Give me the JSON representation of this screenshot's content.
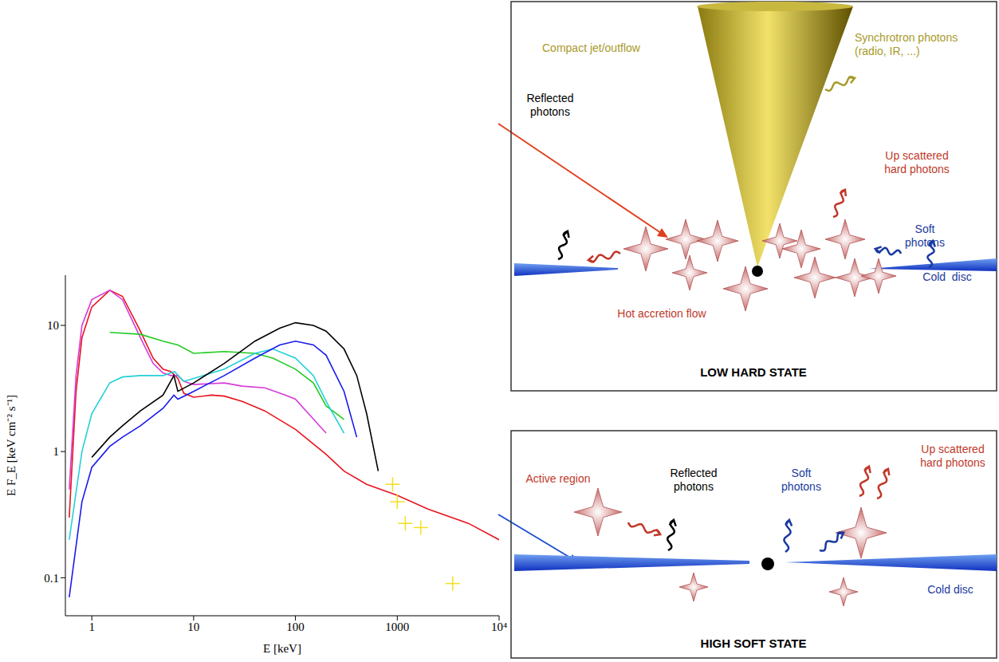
{
  "chart_data": {
    "type": "line",
    "x_label": "E [keV]",
    "y_label": "E F_E [keV cm⁻² s⁻¹]",
    "log": true,
    "xlim": [
      0.55,
      10000
    ],
    "ylim": [
      0.05,
      25
    ],
    "xticks": [
      1,
      10,
      100,
      1000,
      {
        "value": 10000,
        "label": "10⁴"
      }
    ],
    "yticks": [
      0.1,
      1,
      10
    ],
    "series": [
      {
        "color": "#e8141e",
        "x": [
          0.6,
          0.7,
          0.8,
          1,
          1.5,
          2,
          3,
          4,
          5,
          6,
          7,
          8,
          10,
          15,
          20,
          30,
          50,
          100,
          200,
          300,
          500,
          1000,
          2000,
          5000,
          10000
        ],
        "values": [
          0.3,
          3,
          8,
          14,
          19,
          17,
          9,
          5.5,
          4.5,
          4.3,
          3.8,
          2.9,
          2.7,
          2.8,
          2.75,
          2.5,
          2.1,
          1.5,
          0.95,
          0.7,
          0.55,
          0.45,
          0.35,
          0.27,
          0.2
        ]
      },
      {
        "color": "#d63bd6",
        "x": [
          0.6,
          0.7,
          0.8,
          1,
          1.5,
          2,
          3,
          4,
          5,
          6,
          7,
          8,
          10,
          20,
          30,
          50,
          80,
          100,
          200
        ],
        "values": [
          0.5,
          4,
          10,
          16,
          19,
          16,
          8,
          5,
          4.2,
          4,
          4,
          3.6,
          3.4,
          3.5,
          3.3,
          3.2,
          2.8,
          2.6,
          1.4
        ]
      },
      {
        "color": "#22cc22",
        "x": [
          1.5,
          3,
          5,
          7,
          10,
          20,
          40,
          60,
          100,
          150,
          200,
          300
        ],
        "values": [
          8.8,
          8.5,
          7.5,
          7,
          6,
          6.2,
          6,
          5.5,
          4.5,
          3.5,
          2.3,
          1.8
        ]
      },
      {
        "color": "#22d0d8",
        "x": [
          0.6,
          0.8,
          1,
          1.5,
          2,
          3,
          5,
          6.5,
          8,
          10,
          20,
          40,
          60,
          100,
          150,
          200,
          300
        ],
        "values": [
          0.2,
          1,
          2,
          3.5,
          3.9,
          4,
          4,
          4.3,
          3.6,
          3.8,
          4.5,
          6,
          6.5,
          5.5,
          4,
          2.5,
          1.4
        ]
      },
      {
        "color": "#000000",
        "x": [
          1,
          1.5,
          2,
          3,
          5,
          6.4,
          7,
          10,
          20,
          40,
          70,
          100,
          150,
          200,
          300,
          400,
          500,
          650
        ],
        "values": [
          0.9,
          1.3,
          1.6,
          2.1,
          2.8,
          4,
          3,
          3.5,
          5,
          7.5,
          9.5,
          10.5,
          10,
          9,
          6.5,
          4,
          2,
          0.7
        ]
      },
      {
        "color": "#1a1aee",
        "x": [
          0.6,
          0.8,
          1,
          1.5,
          2,
          3,
          5,
          6.4,
          7,
          10,
          20,
          40,
          70,
          100,
          150,
          200,
          300,
          400
        ],
        "values": [
          0.07,
          0.4,
          0.75,
          1.1,
          1.3,
          1.6,
          2.2,
          2.8,
          2.6,
          3,
          4,
          5.5,
          7,
          7.5,
          7,
          5.8,
          3,
          1.3
        ]
      },
      {
        "color": "#f0e020",
        "type": "scatter",
        "marker": "cross",
        "x": [
          900,
          1000,
          1200,
          1700,
          3500
        ],
        "values": [
          0.55,
          0.4,
          0.27,
          0.25,
          0.09
        ]
      }
    ]
  },
  "diagrams": [
    {
      "title": "LOW HARD STATE",
      "labels": [
        [
          "Compact jet/outflow"
        ],
        [
          "Synchrotron photons",
          "(radio, IR, ...)"
        ],
        [
          "Up scattered",
          "hard photons"
        ],
        [
          "Reflected",
          "photons"
        ],
        [
          "Soft",
          "photons"
        ],
        [
          "Cold  disc"
        ],
        [
          "Hot accretion flow"
        ]
      ]
    },
    {
      "title": "HIGH SOFT STATE",
      "labels": [
        [
          "Active region"
        ],
        [
          "Reflected",
          "photons"
        ],
        [
          "Soft",
          "photons"
        ],
        [
          "Up scattered",
          "hard photons"
        ],
        [
          "Cold disc"
        ]
      ]
    }
  ]
}
